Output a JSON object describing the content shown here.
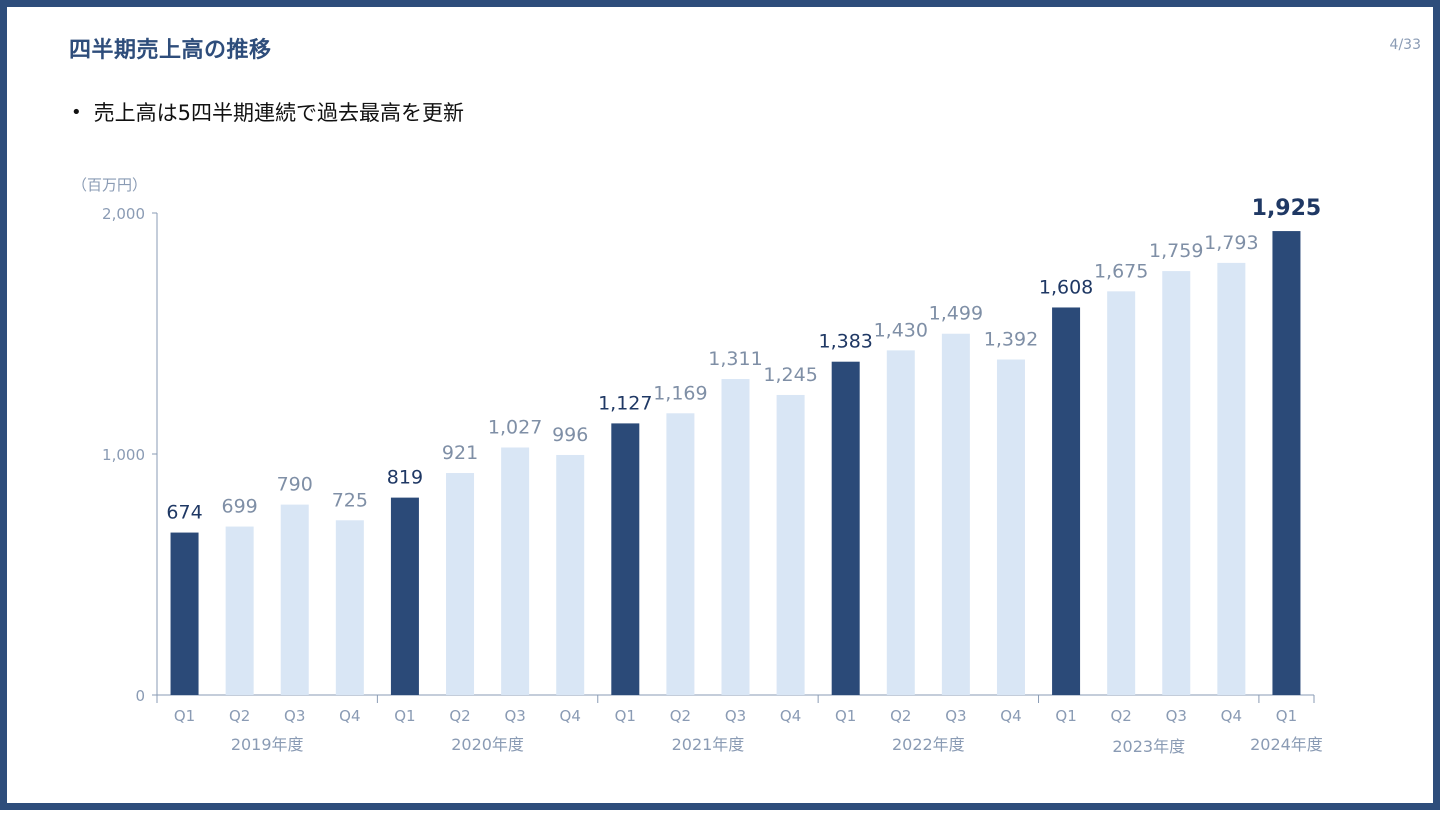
{
  "slide": {
    "title": "四半期売上高の推移",
    "page_number": "4/33",
    "bullet": "売上高は5四半期連続で過去最高を更新"
  },
  "colors": {
    "frame": "#2e4d7b",
    "highlight_bar": "#2b4a78",
    "normal_bar": "#d9e6f5",
    "highlight_label": "#1f3864",
    "normal_label": "#7f8fa6",
    "axis": "#8a9bb4"
  },
  "chart_data": {
    "type": "bar",
    "unit_label": "（百万円）",
    "ylim": [
      0,
      2000
    ],
    "yticks": [
      {
        "value": 0,
        "label": "0"
      },
      {
        "value": 1000,
        "label": "1,000"
      },
      {
        "value": 2000,
        "label": "2,000"
      }
    ],
    "categories": [
      "Q1",
      "Q2",
      "Q3",
      "Q4",
      "Q1",
      "Q2",
      "Q3",
      "Q4",
      "Q1",
      "Q2",
      "Q3",
      "Q4",
      "Q1",
      "Q2",
      "Q3",
      "Q4",
      "Q1",
      "Q2",
      "Q3",
      "Q4",
      "Q1"
    ],
    "values": [
      674,
      699,
      790,
      725,
      819,
      921,
      1027,
      996,
      1127,
      1169,
      1311,
      1245,
      1383,
      1430,
      1499,
      1392,
      1608,
      1675,
      1759,
      1793,
      1925
    ],
    "value_labels": [
      "674",
      "699",
      "790",
      "725",
      "819",
      "921",
      "1,027",
      "996",
      "1,127",
      "1,169",
      "1,311",
      "1,245",
      "1,383",
      "1,430",
      "1,499",
      "1,392",
      "1,608",
      "1,675",
      "1,759",
      "1,793",
      "1,925"
    ],
    "highlighted": [
      true,
      false,
      false,
      false,
      true,
      false,
      false,
      false,
      true,
      false,
      false,
      false,
      true,
      false,
      false,
      false,
      true,
      false,
      false,
      false,
      true
    ],
    "groups": [
      {
        "label": "2019年度",
        "start": 0,
        "count": 4
      },
      {
        "label": "2020年度",
        "start": 4,
        "count": 4
      },
      {
        "label": "2021年度",
        "start": 8,
        "count": 4
      },
      {
        "label": "2022年度",
        "start": 12,
        "count": 4
      },
      {
        "label": "2023年度",
        "start": 16,
        "count": 4
      },
      {
        "label": "2024年度",
        "start": 20,
        "count": 1
      }
    ],
    "grid": false,
    "legend": "none"
  }
}
